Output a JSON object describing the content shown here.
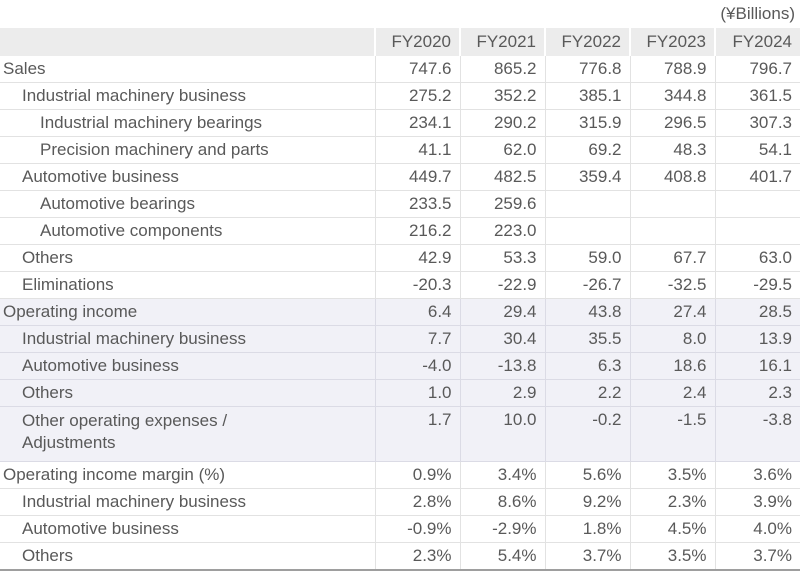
{
  "chart_data": {
    "type": "table",
    "title": "",
    "unit": "(¥Billions)",
    "columns": [
      "FY2020",
      "FY2021",
      "FY2022",
      "FY2023",
      "FY2024"
    ],
    "rows": [
      {
        "label": "Sales",
        "indent": 0,
        "highlight": false,
        "tall": false,
        "values": [
          "747.6",
          "865.2",
          "776.8",
          "788.9",
          "796.7"
        ]
      },
      {
        "label": "Industrial machinery business",
        "indent": 1,
        "highlight": false,
        "tall": false,
        "values": [
          "275.2",
          "352.2",
          "385.1",
          "344.8",
          "361.5"
        ]
      },
      {
        "label": "Industrial machinery bearings",
        "indent": 2,
        "highlight": false,
        "tall": false,
        "values": [
          "234.1",
          "290.2",
          "315.9",
          "296.5",
          "307.3"
        ]
      },
      {
        "label": "Precision machinery and parts",
        "indent": 2,
        "highlight": false,
        "tall": false,
        "values": [
          "41.1",
          "62.0",
          "69.2",
          "48.3",
          "54.1"
        ]
      },
      {
        "label": "Automotive business",
        "indent": 1,
        "highlight": false,
        "tall": false,
        "values": [
          "449.7",
          "482.5",
          "359.4",
          "408.8",
          "401.7"
        ]
      },
      {
        "label": "Automotive bearings",
        "indent": 2,
        "highlight": false,
        "tall": false,
        "values": [
          "233.5",
          "259.6",
          "",
          "",
          ""
        ]
      },
      {
        "label": "Automotive components",
        "indent": 2,
        "highlight": false,
        "tall": false,
        "values": [
          "216.2",
          "223.0",
          "",
          "",
          ""
        ]
      },
      {
        "label": "Others",
        "indent": 1,
        "highlight": false,
        "tall": false,
        "values": [
          "42.9",
          "53.3",
          "59.0",
          "67.7",
          "63.0"
        ]
      },
      {
        "label": "Eliminations",
        "indent": 1,
        "highlight": false,
        "tall": false,
        "values": [
          "-20.3",
          "-22.9",
          "-26.7",
          "-32.5",
          "-29.5"
        ]
      },
      {
        "label": "Operating income",
        "indent": 0,
        "highlight": true,
        "tall": false,
        "values": [
          "6.4",
          "29.4",
          "43.8",
          "27.4",
          "28.5"
        ]
      },
      {
        "label": "Industrial machinery business",
        "indent": 1,
        "highlight": true,
        "tall": false,
        "values": [
          "7.7",
          "30.4",
          "35.5",
          "8.0",
          "13.9"
        ]
      },
      {
        "label": "Automotive business",
        "indent": 1,
        "highlight": true,
        "tall": false,
        "values": [
          "-4.0",
          "-13.8",
          "6.3",
          "18.6",
          "16.1"
        ]
      },
      {
        "label": "Others",
        "indent": 1,
        "highlight": true,
        "tall": false,
        "values": [
          "1.0",
          "2.9",
          "2.2",
          "2.4",
          "2.3"
        ]
      },
      {
        "label": "Other operating expenses /\nAdjustments",
        "indent": 1,
        "highlight": true,
        "tall": true,
        "values": [
          "1.7",
          "10.0",
          "-0.2",
          "-1.5",
          "-3.8"
        ]
      },
      {
        "label": "Operating income margin (%)",
        "indent": 0,
        "highlight": false,
        "tall": false,
        "values": [
          "0.9%",
          "3.4%",
          "5.6%",
          "3.5%",
          "3.6%"
        ]
      },
      {
        "label": "Industrial machinery business",
        "indent": 1,
        "highlight": false,
        "tall": false,
        "values": [
          "2.8%",
          "8.6%",
          "9.2%",
          "2.3%",
          "3.9%"
        ]
      },
      {
        "label": "Automotive business",
        "indent": 1,
        "highlight": false,
        "tall": false,
        "values": [
          "-0.9%",
          "-2.9%",
          "1.8%",
          "4.5%",
          "4.0%"
        ]
      },
      {
        "label": "Others",
        "indent": 1,
        "highlight": false,
        "tall": false,
        "values": [
          "2.3%",
          "5.4%",
          "3.7%",
          "3.5%",
          "3.7%"
        ]
      }
    ],
    "colors": {
      "text": "#595959",
      "header_background": "#ececec",
      "highlight_row_background": "#f1f1f7",
      "row_border": "#e2e2e2",
      "highlight_row_border": "#dbdbe5",
      "table_bottom_border": "#9e9e9e"
    },
    "layout": {
      "label_column_width": 375,
      "value_column_width": 85
    }
  }
}
